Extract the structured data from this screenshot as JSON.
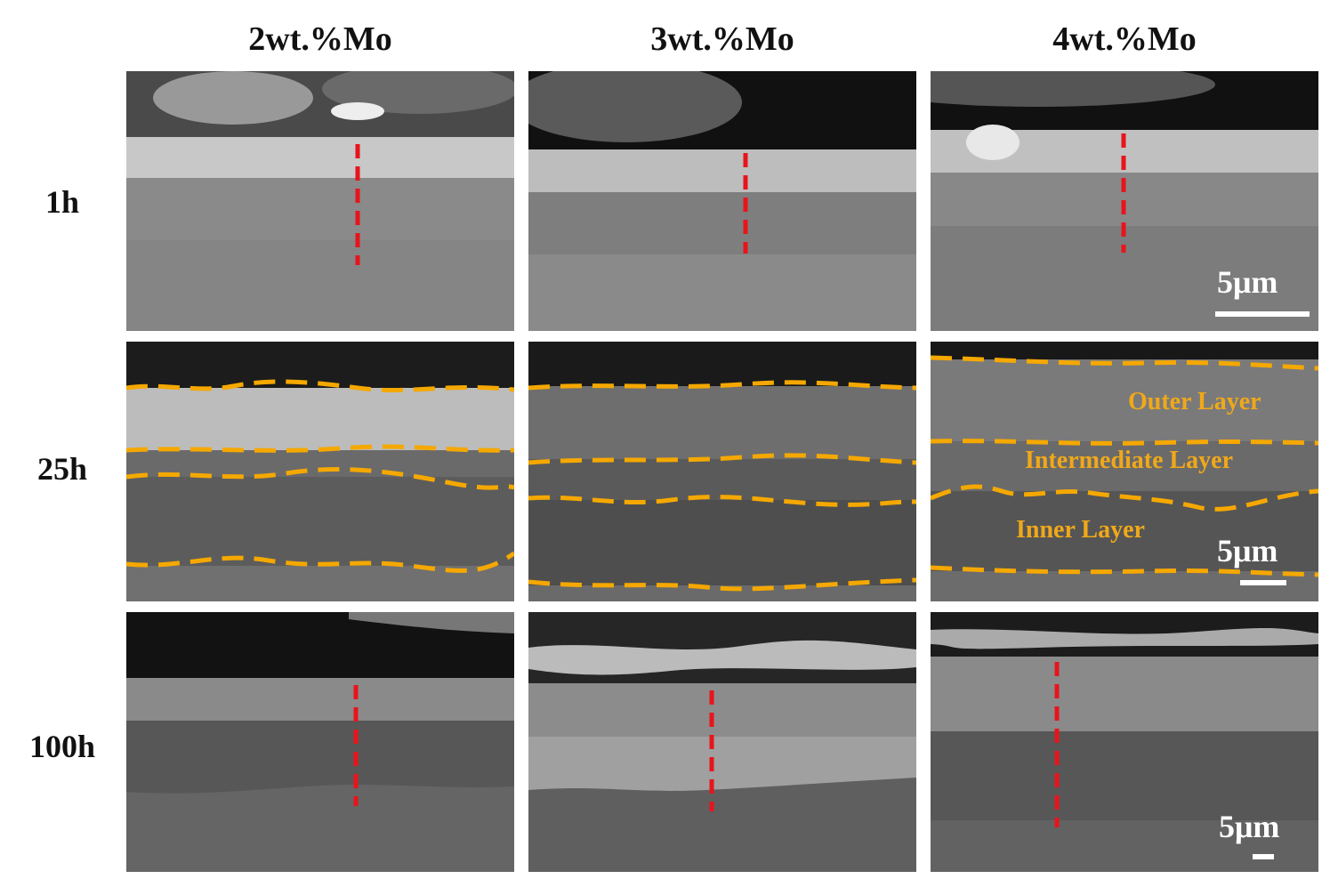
{
  "columns": [
    "2wt.%Mo",
    "3wt.%Mo",
    "4wt.%Mo"
  ],
  "rows": [
    "1h",
    "25h",
    "100h"
  ],
  "scale_bar_label": "5μm",
  "layer_labels": {
    "outer": "Outer Layer",
    "intermediate": "Intermediate Layer",
    "inner": "Inner Layer"
  },
  "colors": {
    "boundary_dash": "#f5a800",
    "profile_dash": "#e8141c",
    "scale_bar": "#ffffff"
  }
}
